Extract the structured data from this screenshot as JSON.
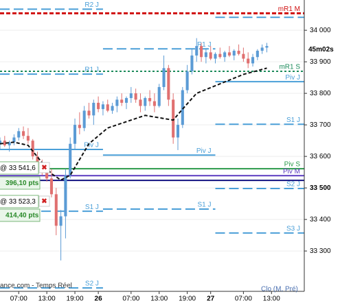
{
  "chart_data": {
    "type": "candlestick",
    "x": [
      3,
      4,
      5,
      6,
      7,
      8,
      9,
      10,
      11,
      12,
      13,
      14,
      15,
      16,
      17,
      18,
      19,
      20,
      21,
      22,
      23,
      24,
      25,
      26,
      27,
      28,
      29,
      30,
      31,
      32,
      33,
      34,
      35,
      36,
      37,
      38,
      39,
      40,
      41,
      42,
      43,
      44,
      45,
      46,
      47,
      48,
      49,
      50,
      51,
      52,
      53,
      54,
      55,
      56,
      57,
      58,
      59,
      60
    ],
    "open": [
      33640,
      33650,
      33635,
      33645,
      33660,
      33680,
      33665,
      33650,
      33600,
      33570,
      33555,
      33530,
      33480,
      33380,
      33410,
      33540,
      33640,
      33700,
      33690,
      33745,
      33730,
      33770,
      33750,
      33765,
      33745,
      33760,
      33780,
      33770,
      33785,
      33800,
      33780,
      33760,
      33785,
      33775,
      33760,
      33820,
      33880,
      33780,
      33660,
      33700,
      33810,
      33870,
      33920,
      33950,
      33915,
      33930,
      33910,
      33925,
      33915,
      33930,
      33920,
      33935,
      33925,
      33910,
      33895,
      33915,
      33935,
      33945
    ],
    "high": [
      33660,
      33665,
      33650,
      33670,
      33690,
      33695,
      33690,
      33655,
      33615,
      33590,
      33575,
      33560,
      33500,
      33430,
      33560,
      33660,
      33720,
      33740,
      33760,
      33770,
      33780,
      33790,
      33775,
      33780,
      33770,
      33790,
      33800,
      33790,
      33820,
      33815,
      33800,
      33790,
      33810,
      33800,
      33830,
      33920,
      33890,
      33800,
      33720,
      33820,
      33890,
      33940,
      33975,
      33960,
      33940,
      33950,
      33930,
      33945,
      33935,
      33950,
      33940,
      33955,
      33945,
      33930,
      33925,
      33940,
      33955,
      33960
    ],
    "low": [
      33620,
      33630,
      33615,
      33635,
      33650,
      33655,
      33640,
      33590,
      33560,
      33540,
      33520,
      33470,
      33350,
      33270,
      33340,
      33530,
      33620,
      33670,
      33680,
      33720,
      33700,
      33740,
      33730,
      33740,
      33735,
      33740,
      33760,
      33750,
      33770,
      33770,
      33740,
      33745,
      33760,
      33740,
      33755,
      33810,
      33760,
      33640,
      33620,
      33690,
      33800,
      33860,
      33900,
      33900,
      33895,
      33905,
      33895,
      33910,
      33900,
      33915,
      33905,
      33920,
      33900,
      33880,
      33885,
      33905,
      33925,
      33930
    ],
    "close": [
      33650,
      33635,
      33645,
      33660,
      33680,
      33665,
      33650,
      33600,
      33570,
      33555,
      33530,
      33480,
      33380,
      33410,
      33540,
      33640,
      33700,
      33690,
      33745,
      33730,
      33770,
      33750,
      33765,
      33745,
      33760,
      33780,
      33770,
      33785,
      33800,
      33780,
      33760,
      33785,
      33775,
      33760,
      33820,
      33880,
      33780,
      33660,
      33700,
      33810,
      33870,
      33920,
      33950,
      33915,
      33930,
      33910,
      33925,
      33915,
      33930,
      33920,
      33935,
      33925,
      33910,
      33895,
      33915,
      33935,
      33945,
      33950
    ],
    "up_color": "#5b9bd5",
    "down_color": "#e07070",
    "xlim": [
      3,
      68
    ],
    "xticks": [
      {
        "value": 7,
        "label": "07:00"
      },
      {
        "value": 13,
        "label": "13:00"
      },
      {
        "value": 19,
        "label": "19:00"
      },
      {
        "value": 24,
        "label": "26"
      },
      {
        "value": 31,
        "label": "07:00"
      },
      {
        "value": 37,
        "label": "13:00"
      },
      {
        "value": 43,
        "label": "19:00"
      },
      {
        "value": 48,
        "label": "27"
      },
      {
        "value": 55,
        "label": "07:00"
      },
      {
        "value": 61,
        "label": "13:00"
      }
    ],
    "ylim": [
      33172,
      34096
    ],
    "yticks": [
      {
        "value": 34000,
        "label": "34 000"
      },
      {
        "value": 33900,
        "label": "33 900"
      },
      {
        "value": 33800,
        "label": "33 800"
      },
      {
        "value": 33700,
        "label": "33 700"
      },
      {
        "value": 33600,
        "label": "33 600"
      },
      {
        "value": 33500,
        "label": "33 500"
      },
      {
        "value": 33400,
        "label": "33 400"
      },
      {
        "value": 33300,
        "label": "33 300"
      }
    ],
    "grid": true,
    "levels": [
      {
        "name": "R2 J",
        "value": 34067,
        "from": 3,
        "to": 25,
        "color": "#4a9fd8",
        "style": "dashed"
      },
      {
        "name": "mR1 M",
        "value": 34054,
        "from": 3,
        "to": 68,
        "color": "#d01010",
        "style": "reddash"
      },
      {
        "name": null,
        "value": 34041,
        "from": 49,
        "to": 68,
        "color": "#4a9fd8",
        "style": "dashed"
      },
      {
        "name": "R1 J",
        "value": 33941,
        "from": 25,
        "to": 49,
        "color": "#4a9fd8",
        "style": "dashed"
      },
      {
        "name": "R1 J",
        "value": 33861,
        "from": 3,
        "to": 25,
        "color": "#4a9fd8",
        "style": "dashed"
      },
      {
        "name": "mR1 S",
        "value": 33870,
        "from": 3,
        "to": 68,
        "color": "#1a8a5a",
        "style": "dotted"
      },
      {
        "name": "Piv J",
        "value": 33837,
        "from": 49,
        "to": 68,
        "color": "#4a9fd8",
        "style": "solid"
      },
      {
        "name": "S1 J",
        "value": 33702,
        "from": 49,
        "to": 68,
        "color": "#4a9fd8",
        "style": "dashed"
      },
      {
        "name": "Piv J",
        "value": 33622,
        "from": 3,
        "to": 25,
        "color": "#4a9fd8",
        "style": "solid"
      },
      {
        "name": "Piv J",
        "value": 33604,
        "from": 25,
        "to": 49,
        "color": "#4a9fd8",
        "style": "solid"
      },
      {
        "name": "Piv S",
        "value": 33561,
        "from": 3,
        "to": 68,
        "color": "#2a9a4a",
        "style": "solid"
      },
      {
        "name": "Piv M",
        "value": 33539,
        "from": 3,
        "to": 68,
        "color": "#5a3ac0",
        "style": "solid"
      },
      {
        "name": null,
        "value": 33524,
        "from": 3,
        "to": 68,
        "color": "#101080",
        "style": "solid"
      },
      {
        "name": "S2 J",
        "value": 33498,
        "from": 49,
        "to": 68,
        "color": "#4a9fd8",
        "style": "dashed"
      },
      {
        "name": "S1 J",
        "value": 33426,
        "from": 3,
        "to": 25,
        "color": "#4a9fd8",
        "style": "dashed"
      },
      {
        "name": "S1 J",
        "value": 33433,
        "from": 25,
        "to": 49,
        "color": "#4a9fd8",
        "style": "dashed"
      },
      {
        "name": "S3 J",
        "value": 33357,
        "from": 49,
        "to": 68,
        "color": "#4a9fd8",
        "style": "dashed"
      },
      {
        "name": "S2 J",
        "value": 33183,
        "from": 3,
        "to": 25,
        "color": "#4a9fd8",
        "style": "dashed"
      }
    ],
    "moving_average": {
      "x": [
        3,
        6,
        9,
        12,
        14,
        16,
        18,
        22,
        26,
        30,
        34,
        38,
        40,
        42,
        45,
        50,
        55,
        60
      ],
      "values": [
        33640,
        33645,
        33635,
        33580,
        33545,
        33525,
        33540,
        33640,
        33690,
        33710,
        33730,
        33720,
        33715,
        33750,
        33800,
        33830,
        33860,
        33880
      ],
      "color": "#111111"
    }
  },
  "overlay": {
    "countdown": "45m02s",
    "source": "ance.com - Temps Réel",
    "mode": "Clo (M, Pré)",
    "orders": [
      {
        "price": "@ 33 541,6",
        "points": "396,10 pts"
      },
      {
        "price": "@ 33 523,3",
        "points": "414,40 pts"
      }
    ]
  }
}
